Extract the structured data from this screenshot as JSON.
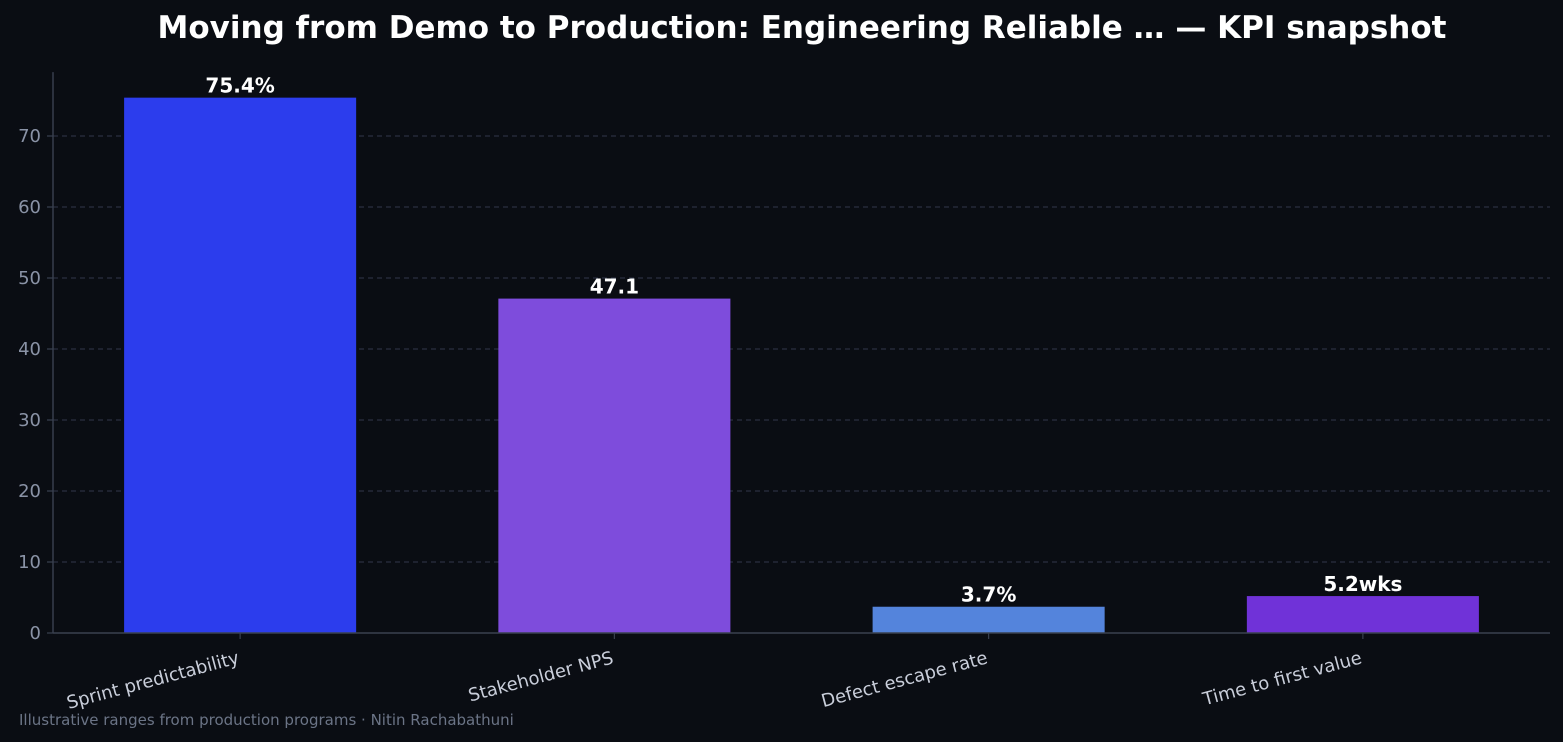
{
  "chart_data": {
    "type": "bar",
    "title": "Moving from Demo to Production: Engineering Reliable … — KPI snapshot",
    "categories": [
      "Sprint predictability",
      "Stakeholder NPS",
      "Defect escape rate",
      "Time to first value"
    ],
    "values": [
      75.4,
      47.1,
      3.7,
      5.2
    ],
    "data_labels": [
      "75.4%",
      "47.1",
      "3.7%",
      "5.2wks"
    ],
    "bar_colors": [
      "#2c3ded",
      "#7e4cdc",
      "#5484dc",
      "#7032d8"
    ],
    "ylim": [
      0,
      79
    ],
    "yticks": [
      0,
      10,
      20,
      30,
      40,
      50,
      60,
      70
    ],
    "grid": true,
    "xlabel": "",
    "ylabel": ""
  },
  "footnote": "Illustrative ranges from production programs · Nitin Rachabathuni",
  "colors": {
    "background": "#0a0d13",
    "axis": "#3a4150",
    "grid": "#2a3040"
  }
}
